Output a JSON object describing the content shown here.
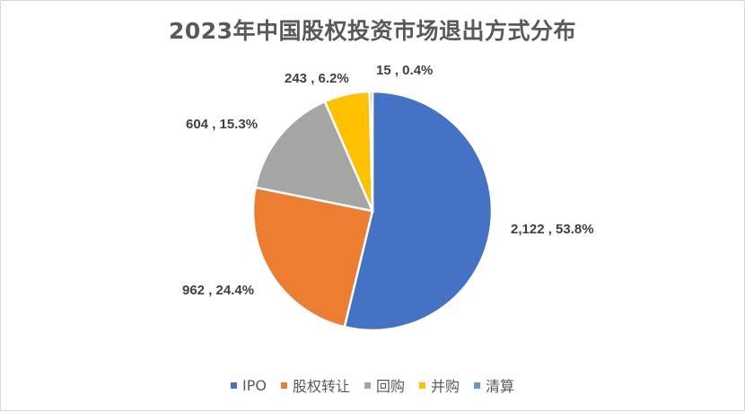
{
  "chart_data": {
    "type": "pie",
    "title": "2023年中国股权投资市场退出方式分布",
    "categories": [
      "IPO",
      "股权转让",
      "回购",
      "并购",
      "清算"
    ],
    "values": [
      2122,
      962,
      604,
      243,
      15
    ],
    "percentages": [
      53.8,
      24.4,
      15.3,
      6.2,
      0.4
    ],
    "data_labels": [
      "2,122 , 53.8%",
      "962 , 24.4%",
      "604 , 15.3%",
      "243 , 6.2%",
      "15 , 0.4%"
    ],
    "colors": [
      "#4472C4",
      "#ED7D31",
      "#A5A5A5",
      "#FFC000",
      "#5B9BD5"
    ],
    "legend_position": "bottom"
  }
}
